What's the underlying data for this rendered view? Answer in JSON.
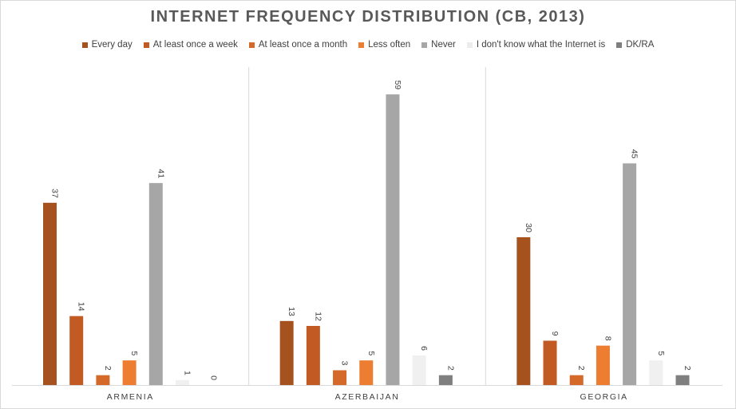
{
  "chart_data": {
    "type": "bar",
    "title": "INTERNET FREQUENCY DISTRIBUTION (CB, 2013)",
    "xlabel": "",
    "ylabel": "",
    "ylim": [
      0,
      60
    ],
    "grid": false,
    "legend_position": "top",
    "categories": [
      "ARMENIA",
      "AZERBAIJAN",
      "GEORGIA"
    ],
    "series": [
      {
        "name": "Every day",
        "color": "#a5521f",
        "values": [
          37,
          13,
          30
        ]
      },
      {
        "name": "At least once a week",
        "color": "#c25b23",
        "values": [
          14,
          12,
          9
        ]
      },
      {
        "name": "At least once a month",
        "color": "#d4692a",
        "values": [
          2,
          3,
          2
        ]
      },
      {
        "name": "Less often",
        "color": "#ed7d31",
        "values": [
          5,
          5,
          8
        ]
      },
      {
        "name": "Never",
        "color": "#a6a6a6",
        "values": [
          41,
          59,
          45
        ]
      },
      {
        "name": "I don't know what the Internet is",
        "color": "#f0f0f0",
        "values": [
          1,
          6,
          5
        ]
      },
      {
        "name": "DK/RA",
        "color": "#7f7f7f",
        "values": [
          0,
          2,
          2
        ]
      }
    ]
  }
}
